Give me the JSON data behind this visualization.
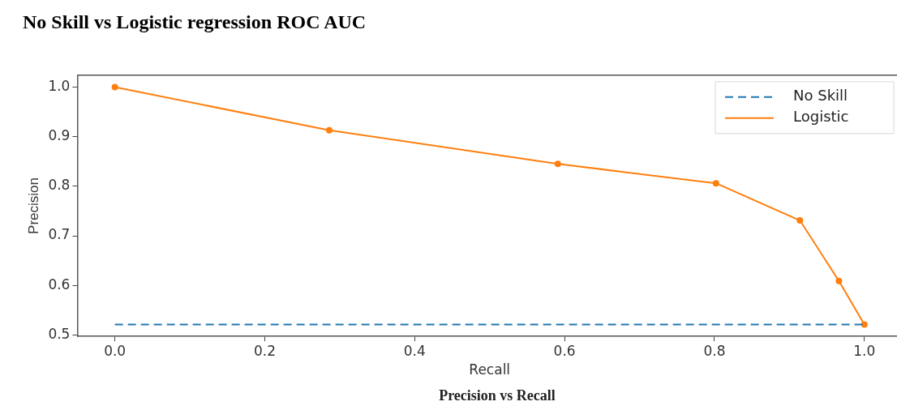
{
  "chart_data": {
    "type": "line",
    "title": "No Skill vs Logistic regression ROC AUC",
    "xlabel": "Recall",
    "ylabel": "Precision",
    "annotations": [
      "Precision vs Recall"
    ],
    "xlim": [
      -0.05,
      1.05
    ],
    "ylim": [
      0.497,
      1.024
    ],
    "xticks": [
      {
        "value": 0,
        "label": "0.0"
      },
      {
        "value": 0.2,
        "label": "0.2"
      },
      {
        "value": 0.4,
        "label": "0.4"
      },
      {
        "value": 0.6,
        "label": "0.6"
      },
      {
        "value": 0.8,
        "label": "0.8"
      },
      {
        "value": 1,
        "label": "1.0"
      }
    ],
    "yticks": [
      {
        "value": 0.5,
        "label": "0.5"
      },
      {
        "value": 0.6,
        "label": "0.6"
      },
      {
        "value": 0.7,
        "label": "0.7"
      },
      {
        "value": 0.8,
        "label": "0.8"
      },
      {
        "value": 0.9,
        "label": "0.9"
      },
      {
        "value": 1,
        "label": "1.0"
      }
    ],
    "grid": false,
    "legend": "top right",
    "series": [
      {
        "name": "No Skill",
        "color": "#1f77b4",
        "line_style": "dashed",
        "marker": "none",
        "x": [
          0,
          1
        ],
        "values": [
          0.521,
          0.521
        ]
      },
      {
        "name": "Logistic",
        "color": "#ff7f0e",
        "line_style": "solid",
        "marker": "circle",
        "x": [
          0,
          0.286,
          0.591,
          0.802,
          0.914,
          0.966,
          1.0
        ],
        "values": [
          1.0,
          0.913,
          0.845,
          0.806,
          0.731,
          0.609,
          0.521
        ]
      }
    ]
  }
}
